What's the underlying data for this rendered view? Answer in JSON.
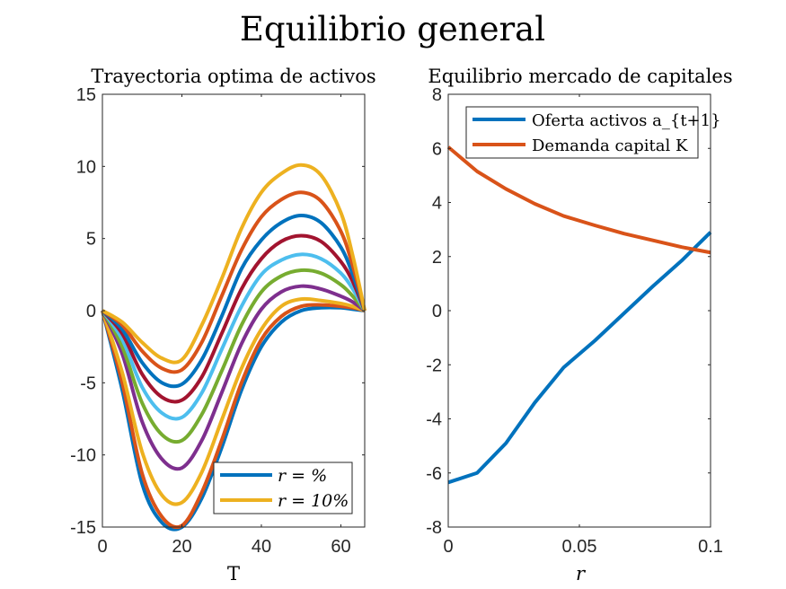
{
  "figure_title": "Equilibrio general",
  "chart_data": [
    {
      "type": "line",
      "title": "Trayectoria optima de activos",
      "xlabel": "T",
      "ylabel": "",
      "xlim": [
        0,
        66
      ],
      "ylim": [
        -15,
        15
      ],
      "x_ticks": [
        "0",
        "20",
        "40",
        "60"
      ],
      "y_ticks": [
        "15",
        "10",
        "5",
        "0",
        "-5",
        "-10",
        "-15"
      ],
      "legend": {
        "position": "bottom-right",
        "entries": [
          {
            "label": "r = %",
            "color": "#0072BD"
          },
          {
            "label": "r = 10%",
            "color": "#EDB120"
          }
        ]
      },
      "x": [
        0,
        5,
        10,
        15,
        20,
        25,
        30,
        35,
        40,
        45,
        50,
        55,
        60,
        63,
        66
      ],
      "series": [
        {
          "color": "#0072BD",
          "values": [
            0,
            -5.5,
            -12.0,
            -14.7,
            -15.0,
            -13.0,
            -9.5,
            -5.5,
            -2.5,
            -0.8,
            0,
            0.2,
            0.2,
            0.1,
            0
          ]
        },
        {
          "color": "#D95319",
          "values": [
            0,
            -5.0,
            -11.3,
            -14.3,
            -14.9,
            -12.6,
            -9.0,
            -5.0,
            -2.0,
            -0.4,
            0.3,
            0.4,
            0.3,
            0.2,
            0
          ]
        },
        {
          "color": "#EDB120",
          "values": [
            0,
            -4.3,
            -9.8,
            -12.8,
            -13.3,
            -11.2,
            -7.6,
            -4.0,
            -1.3,
            0.3,
            0.8,
            0.7,
            0.5,
            0.3,
            0
          ]
        },
        {
          "color": "#7E2F8E",
          "values": [
            0,
            -3.0,
            -7.7,
            -10.3,
            -10.9,
            -9.0,
            -5.7,
            -2.3,
            0.1,
            1.3,
            1.7,
            1.5,
            1.0,
            0.6,
            0
          ]
        },
        {
          "color": "#77AC30",
          "values": [
            0,
            -2.5,
            -6.4,
            -8.6,
            -9.0,
            -7.2,
            -4.2,
            -1.0,
            1.3,
            2.4,
            2.8,
            2.6,
            1.8,
            1.0,
            0
          ]
        },
        {
          "color": "#4DBEEE",
          "values": [
            0,
            -2.0,
            -5.3,
            -7.1,
            -7.4,
            -5.7,
            -2.7,
            0.3,
            2.5,
            3.5,
            3.9,
            3.6,
            2.6,
            1.5,
            0
          ]
        },
        {
          "color": "#A2142F",
          "values": [
            0,
            -1.6,
            -4.4,
            -6.0,
            -6.2,
            -4.6,
            -1.6,
            1.5,
            3.6,
            4.8,
            5.2,
            4.8,
            3.4,
            2.0,
            0
          ]
        },
        {
          "color": "#0072BD",
          "values": [
            0,
            -1.3,
            -3.6,
            -5.0,
            -5.1,
            -3.4,
            -0.4,
            2.9,
            4.9,
            6.1,
            6.6,
            6.1,
            4.4,
            2.5,
            0
          ]
        },
        {
          "color": "#D95319",
          "values": [
            0,
            -1.0,
            -2.8,
            -4.0,
            -4.1,
            -2.2,
            1.0,
            4.2,
            6.5,
            7.7,
            8.2,
            7.6,
            5.5,
            3.1,
            0
          ]
        },
        {
          "color": "#EDB120",
          "values": [
            0,
            -0.8,
            -2.2,
            -3.3,
            -3.4,
            -1.0,
            2.2,
            5.7,
            8.2,
            9.5,
            10.1,
            9.4,
            6.8,
            3.8,
            0
          ]
        }
      ]
    },
    {
      "type": "line",
      "title": "Equilibrio mercado de capitales",
      "xlabel": "r",
      "ylabel": "",
      "xlim": [
        0,
        0.1
      ],
      "ylim": [
        -8,
        8
      ],
      "x_ticks": [
        "0",
        "0.05",
        "0.1"
      ],
      "y_ticks": [
        "8",
        "6",
        "4",
        "2",
        "0",
        "-2",
        "-4",
        "-6",
        "-8"
      ],
      "legend": {
        "position": "top-right",
        "entries": [
          {
            "label": "Oferta activos a_{t+1}",
            "color": "#0072BD"
          },
          {
            "label": "Demanda capital K",
            "color": "#D95319"
          }
        ]
      },
      "x": [
        0,
        0.011,
        0.022,
        0.033,
        0.044,
        0.056,
        0.067,
        0.078,
        0.089,
        0.1
      ],
      "series": [
        {
          "name": "Oferta activos a_{t+1}",
          "color": "#0072BD",
          "values": [
            -6.35,
            -6.0,
            -4.9,
            -3.4,
            -2.1,
            -1.1,
            -0.1,
            0.9,
            1.85,
            2.9
          ]
        },
        {
          "name": "Demanda capital K",
          "color": "#D95319",
          "values": [
            6.05,
            5.15,
            4.5,
            3.95,
            3.5,
            3.15,
            2.85,
            2.6,
            2.35,
            2.15
          ]
        }
      ]
    }
  ]
}
